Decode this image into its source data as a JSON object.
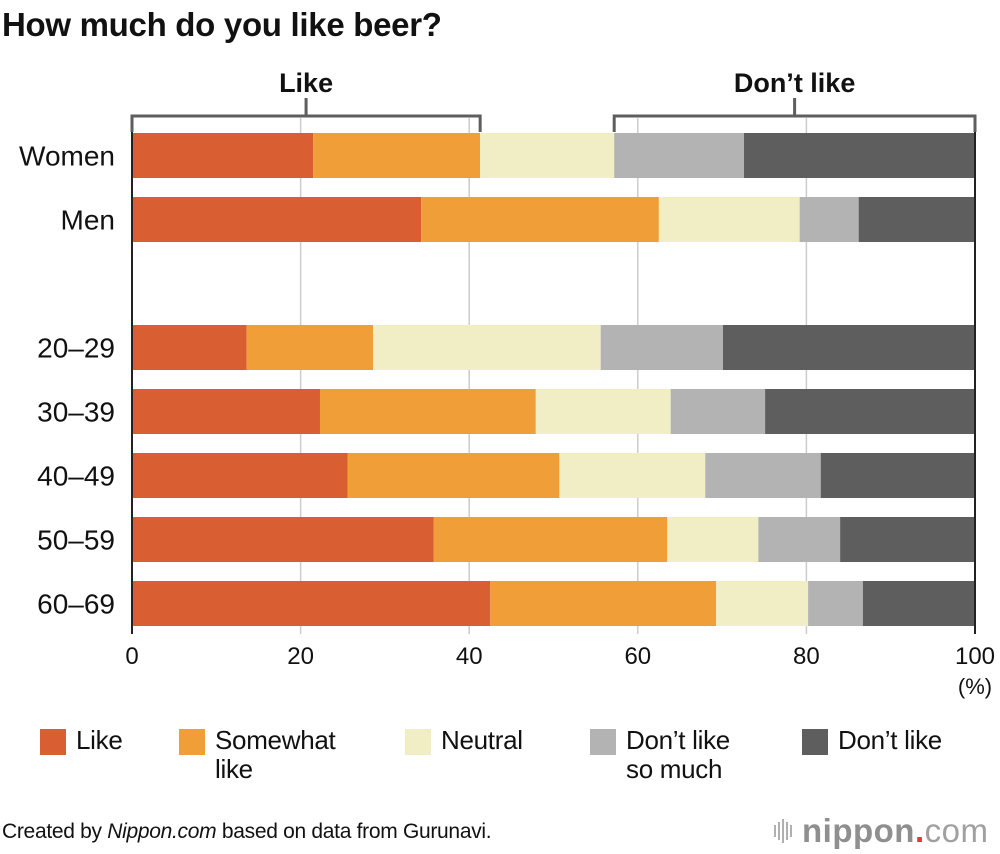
{
  "chart_data": {
    "type": "bar",
    "orientation": "horizontal",
    "stacked": true,
    "title": "How much do you like beer?",
    "xlabel": "(%)",
    "ylabel": "",
    "xlim": [
      0,
      100
    ],
    "xticks": [
      0,
      20,
      40,
      60,
      80,
      100
    ],
    "xtick_labels": [
      "0",
      "20",
      "40",
      "60",
      "80",
      "100"
    ],
    "grid": true,
    "categories": [
      "Women",
      "Men",
      "20–29",
      "30–39",
      "40–49",
      "50–59",
      "60–69"
    ],
    "groups": [
      [
        "Women",
        "Men"
      ],
      [
        "20–29",
        "30–39",
        "40–49",
        "50–59",
        "60–69"
      ]
    ],
    "series": [
      {
        "name": "Like",
        "color": "#d95f32",
        "values": [
          21.5,
          34.3,
          13.6,
          22.3,
          25.6,
          35.8,
          42.5
        ]
      },
      {
        "name": "Somewhat like",
        "color": "#f09f38",
        "values": [
          19.8,
          28.2,
          15.0,
          25.6,
          25.1,
          27.7,
          26.8
        ]
      },
      {
        "name": "Neutral",
        "color": "#f1eec6",
        "values": [
          15.9,
          16.7,
          27.0,
          16.0,
          17.3,
          10.8,
          10.9
        ]
      },
      {
        "name": "Don’t like so much",
        "color": "#b3b3b3",
        "values": [
          15.4,
          7.0,
          14.5,
          11.2,
          13.7,
          9.7,
          6.5
        ]
      },
      {
        "name": "Don’t like",
        "color": "#5e5e5e",
        "values": [
          27.4,
          13.8,
          29.9,
          24.9,
          18.3,
          16.0,
          13.3
        ]
      }
    ],
    "annotations": [
      {
        "text": "Like",
        "spans_series": [
          "Like",
          "Somewhat like"
        ],
        "note": "bracket over Women bar"
      },
      {
        "text": "Don’t like",
        "spans_series": [
          "Don’t like so much",
          "Don’t like"
        ],
        "note": "bracket over Women bar"
      }
    ],
    "legend_position": "bottom"
  },
  "title": "How much do you like beer?",
  "legend": [
    {
      "label": "Like",
      "color": "#d95f32"
    },
    {
      "label": "Somewhat\nlike",
      "color": "#f09f38"
    },
    {
      "label": "Neutral",
      "color": "#f1eec6"
    },
    {
      "label": "Don’t like\nso much",
      "color": "#b3b3b3"
    },
    {
      "label": "Don’t like",
      "color": "#5e5e5e"
    }
  ],
  "footer": {
    "prefix": "Created by ",
    "source_italic": "Nippon.com",
    "suffix": " based on data from Gurunavi."
  },
  "logo": {
    "name": "nippon",
    "dot": ".",
    "tld": "com"
  }
}
